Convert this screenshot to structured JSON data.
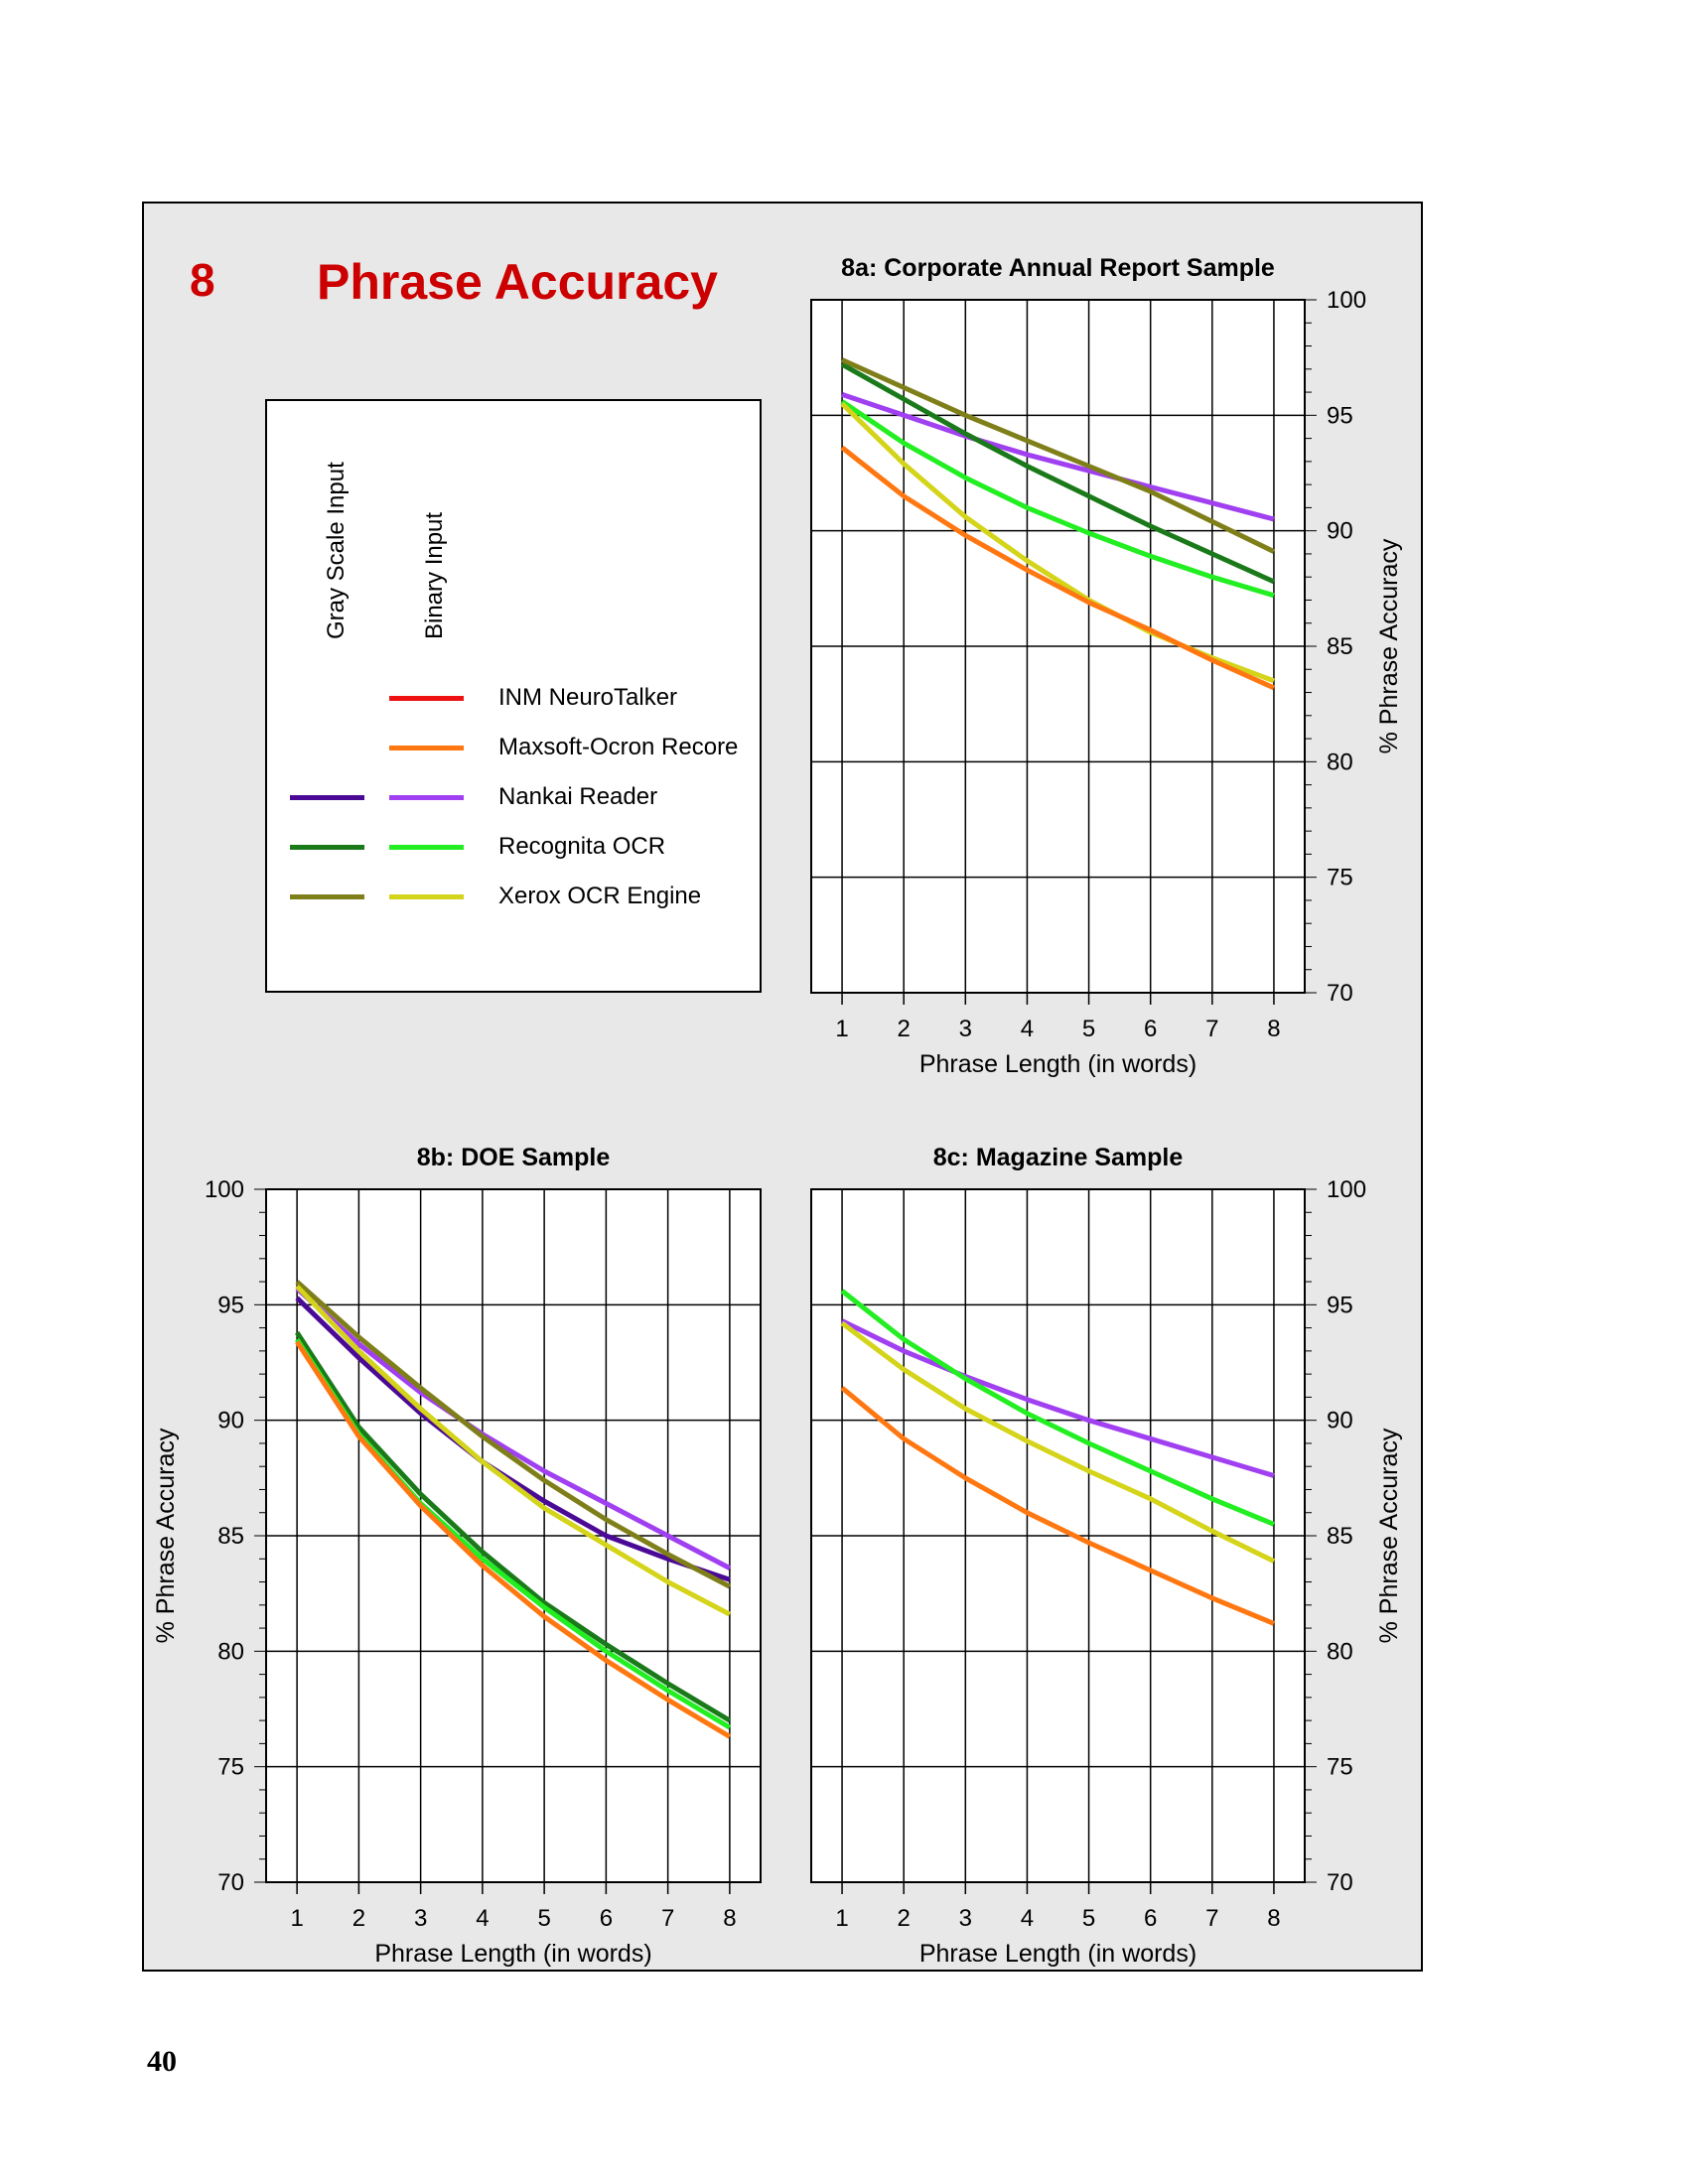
{
  "section": {
    "number": "8",
    "title": "Phrase Accuracy"
  },
  "page_number": "40",
  "legend": {
    "column_headers": [
      "Gray Scale Input",
      "Binary Input"
    ],
    "entries": [
      {
        "label": "INM NeuroTalker",
        "gray_color": null,
        "binary_color": "#ee1111"
      },
      {
        "label": "Maxsoft-Ocron Recore",
        "gray_color": null,
        "binary_color": "#ff7711"
      },
      {
        "label": "Nankai Reader",
        "gray_color": "#4b0a96",
        "binary_color": "#a040f0"
      },
      {
        "label": "Recognita OCR",
        "gray_color": "#1a7a1a",
        "binary_color": "#22ee22"
      },
      {
        "label": "Xerox OCR Engine",
        "gray_color": "#7f7f1a",
        "binary_color": "#d4d41a"
      }
    ]
  },
  "chart_data": [
    {
      "id": "8a",
      "type": "line",
      "title": "8a:  Corporate Annual Report Sample",
      "xlabel": "Phrase Length (in words)",
      "ylabel": "% Phrase Accuracy",
      "x": [
        1,
        2,
        3,
        4,
        5,
        6,
        7,
        8
      ],
      "xticks": [
        "1",
        "2",
        "3",
        "4",
        "5",
        "6",
        "7",
        "8"
      ],
      "ylim": [
        70,
        100
      ],
      "yticks": [
        "70",
        "75",
        "80",
        "85",
        "90",
        "95",
        "100"
      ],
      "y_axis_side": "right",
      "grid": true,
      "series": [
        {
          "name": "Nankai Reader (binary)",
          "color": "#a040f0",
          "values": [
            95.9,
            95.0,
            94.1,
            93.3,
            92.6,
            91.9,
            91.2,
            90.5
          ]
        },
        {
          "name": "Recognita OCR (gray)",
          "color": "#1a7a1a",
          "values": [
            97.2,
            95.7,
            94.2,
            92.8,
            91.5,
            90.2,
            89.0,
            87.8
          ]
        },
        {
          "name": "Recognita OCR (binary)",
          "color": "#22ee22",
          "values": [
            95.6,
            93.8,
            92.3,
            91.0,
            89.9,
            88.9,
            88.0,
            87.2
          ]
        },
        {
          "name": "Xerox OCR Engine (gray)",
          "color": "#7f7f1a",
          "values": [
            97.4,
            96.2,
            95.0,
            93.9,
            92.8,
            91.7,
            90.4,
            89.1
          ]
        },
        {
          "name": "Xerox OCR Engine (binary)",
          "color": "#d4d41a",
          "values": [
            95.5,
            92.9,
            90.6,
            88.7,
            87.0,
            85.6,
            84.5,
            83.5
          ]
        },
        {
          "name": "Maxsoft-Ocron Recore (binary)",
          "color": "#ff7711",
          "values": [
            93.6,
            91.5,
            89.8,
            88.3,
            86.9,
            85.7,
            84.4,
            83.2
          ]
        }
      ]
    },
    {
      "id": "8b",
      "type": "line",
      "title": "8b:  DOE Sample",
      "xlabel": "Phrase Length (in words)",
      "ylabel": "% Phrase Accuracy",
      "x": [
        1,
        2,
        3,
        4,
        5,
        6,
        7,
        8
      ],
      "xticks": [
        "1",
        "2",
        "3",
        "4",
        "5",
        "6",
        "7",
        "8"
      ],
      "ylim": [
        70,
        100
      ],
      "yticks": [
        "70",
        "75",
        "80",
        "85",
        "90",
        "95",
        "100"
      ],
      "y_axis_side": "left",
      "grid": true,
      "series": [
        {
          "name": "Nankai Reader (gray)",
          "color": "#4b0a96",
          "values": [
            95.3,
            92.7,
            90.3,
            88.2,
            86.5,
            85.0,
            84.0,
            83.1
          ]
        },
        {
          "name": "Nankai Reader (binary)",
          "color": "#a040f0",
          "values": [
            95.7,
            93.3,
            91.2,
            89.4,
            87.8,
            86.4,
            85.0,
            83.6
          ]
        },
        {
          "name": "Xerox OCR Engine (gray)",
          "color": "#7f7f1a",
          "values": [
            96.0,
            93.6,
            91.4,
            89.3,
            87.4,
            85.7,
            84.2,
            82.8
          ]
        },
        {
          "name": "Xerox OCR Engine (binary)",
          "color": "#d4d41a",
          "values": [
            95.8,
            93.0,
            90.5,
            88.2,
            86.2,
            84.6,
            83.0,
            81.6
          ]
        },
        {
          "name": "Recognita OCR (gray)",
          "color": "#1a7a1a",
          "values": [
            93.8,
            89.7,
            86.8,
            84.3,
            82.1,
            80.3,
            78.6,
            77.0
          ]
        },
        {
          "name": "Recognita OCR (binary)",
          "color": "#22ee22",
          "values": [
            93.5,
            89.4,
            86.4,
            84.0,
            81.9,
            80.0,
            78.3,
            76.7
          ]
        },
        {
          "name": "Maxsoft-Ocron Recore (binary)",
          "color": "#ff7711",
          "values": [
            93.4,
            89.3,
            86.3,
            83.7,
            81.5,
            79.6,
            77.9,
            76.3
          ]
        }
      ]
    },
    {
      "id": "8c",
      "type": "line",
      "title": "8c:  Magazine Sample",
      "xlabel": "Phrase Length (in words)",
      "ylabel": "% Phrase Accuracy",
      "x": [
        1,
        2,
        3,
        4,
        5,
        6,
        7,
        8
      ],
      "xticks": [
        "1",
        "2",
        "3",
        "4",
        "5",
        "6",
        "7",
        "8"
      ],
      "ylim": [
        70,
        100
      ],
      "yticks": [
        "70",
        "75",
        "80",
        "85",
        "90",
        "95",
        "100"
      ],
      "y_axis_side": "right",
      "grid": true,
      "series": [
        {
          "name": "Nankai Reader (binary)",
          "color": "#a040f0",
          "values": [
            94.3,
            93.0,
            91.9,
            90.9,
            90.0,
            89.2,
            88.4,
            87.6
          ]
        },
        {
          "name": "Recognita OCR (binary)",
          "color": "#22ee22",
          "values": [
            95.6,
            93.5,
            91.8,
            90.3,
            89.0,
            87.8,
            86.6,
            85.5
          ]
        },
        {
          "name": "Xerox OCR Engine (binary)",
          "color": "#d4d41a",
          "values": [
            94.2,
            92.2,
            90.5,
            89.1,
            87.8,
            86.6,
            85.2,
            83.9
          ]
        },
        {
          "name": "Maxsoft-Ocron Recore (binary)",
          "color": "#ff7711",
          "values": [
            91.4,
            89.2,
            87.5,
            86.0,
            84.7,
            83.5,
            82.3,
            81.2
          ]
        }
      ]
    }
  ]
}
